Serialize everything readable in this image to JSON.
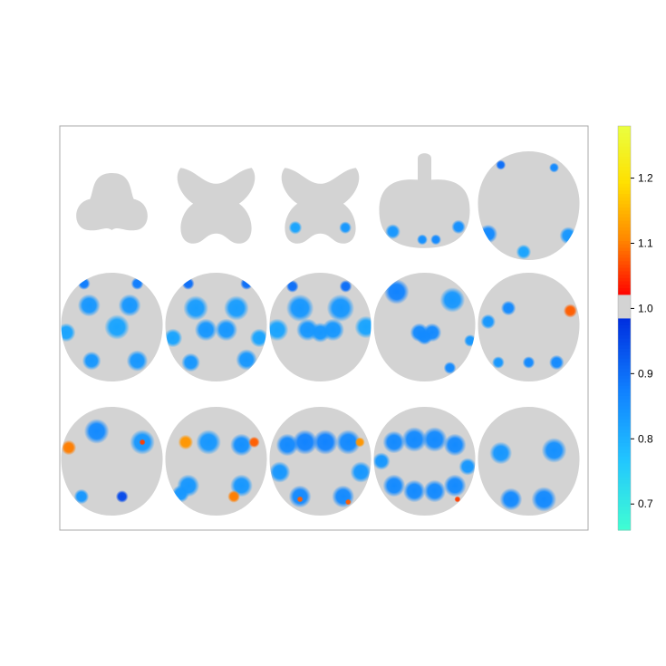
{
  "chart_data": {
    "type": "heatmap",
    "title": "",
    "layout": {
      "rows": 3,
      "cols": 5
    },
    "brain_color": "#d3d3d3",
    "panel_border_color": "#a9a9a9",
    "colorbar": {
      "range": [
        0.66,
        1.28
      ],
      "ticks": [
        "0.7",
        "0.8",
        "0.9",
        "1.0",
        "1.1",
        "1.2"
      ],
      "tick_values": [
        0.7,
        0.8,
        0.9,
        1.0,
        1.1,
        1.2
      ],
      "neutral_band": [
        0.983,
        1.02
      ],
      "low_colors": [
        "#40ffd2",
        "#22c6ff",
        "#1080ff",
        "#0030e0"
      ],
      "high_colors": [
        "#ff0000",
        "#ff8800",
        "#ffe000",
        "#eaff40"
      ]
    },
    "slices": [
      {
        "id": "s1",
        "shape": "cerebellum",
        "blobs": []
      },
      {
        "id": "s2",
        "shape": "cross",
        "blobs": []
      },
      {
        "id": "s3",
        "shape": "cross",
        "blobs": [
          {
            "u": -0.6,
            "v": 0.55,
            "r": 0.14,
            "val": 0.82
          },
          {
            "u": 0.6,
            "v": 0.55,
            "r": 0.13,
            "val": 0.84
          }
        ]
      },
      {
        "id": "s4",
        "shape": "stem",
        "blobs": [
          {
            "u": -0.7,
            "v": 0.55,
            "r": 0.14,
            "val": 0.84
          },
          {
            "u": 0.75,
            "v": 0.45,
            "r": 0.13,
            "val": 0.85
          },
          {
            "u": -0.05,
            "v": 0.72,
            "r": 0.1,
            "val": 0.85
          },
          {
            "u": 0.25,
            "v": 0.72,
            "r": 0.1,
            "val": 0.86
          }
        ]
      },
      {
        "id": "s5",
        "shape": "oval",
        "blobs": [
          {
            "u": -0.55,
            "v": -0.75,
            "r": 0.08,
            "val": 0.9
          },
          {
            "u": 0.5,
            "v": -0.7,
            "r": 0.08,
            "val": 0.86
          },
          {
            "u": -0.8,
            "v": 0.52,
            "r": 0.15,
            "val": 0.86
          },
          {
            "u": 0.78,
            "v": 0.55,
            "r": 0.14,
            "val": 0.84
          },
          {
            "u": -0.1,
            "v": 0.85,
            "r": 0.12,
            "val": 0.82
          }
        ]
      },
      {
        "id": "s6",
        "shape": "oval",
        "blobs": [
          {
            "u": -0.55,
            "v": -0.8,
            "r": 0.1,
            "val": 0.88
          },
          {
            "u": 0.5,
            "v": -0.8,
            "r": 0.1,
            "val": 0.88
          },
          {
            "u": -0.45,
            "v": -0.4,
            "r": 0.18,
            "val": 0.84
          },
          {
            "u": 0.35,
            "v": -0.4,
            "r": 0.18,
            "val": 0.84
          },
          {
            "u": 0.1,
            "v": 0.0,
            "r": 0.2,
            "val": 0.82
          },
          {
            "u": -0.9,
            "v": 0.1,
            "r": 0.15,
            "val": 0.82
          },
          {
            "u": -0.4,
            "v": 0.62,
            "r": 0.15,
            "val": 0.84
          },
          {
            "u": 0.5,
            "v": 0.62,
            "r": 0.17,
            "val": 0.84
          }
        ]
      },
      {
        "id": "s7",
        "shape": "oval",
        "blobs": [
          {
            "u": -0.55,
            "v": -0.8,
            "r": 0.1,
            "val": 0.9
          },
          {
            "u": 0.6,
            "v": -0.8,
            "r": 0.1,
            "val": 0.9
          },
          {
            "u": -0.4,
            "v": -0.35,
            "r": 0.2,
            "val": 0.83
          },
          {
            "u": 0.4,
            "v": -0.35,
            "r": 0.2,
            "val": 0.83
          },
          {
            "u": -0.2,
            "v": 0.05,
            "r": 0.18,
            "val": 0.84
          },
          {
            "u": 0.2,
            "v": 0.05,
            "r": 0.18,
            "val": 0.84
          },
          {
            "u": -0.85,
            "v": 0.2,
            "r": 0.15,
            "val": 0.82
          },
          {
            "u": 0.85,
            "v": 0.2,
            "r": 0.15,
            "val": 0.82
          },
          {
            "u": -0.5,
            "v": 0.65,
            "r": 0.15,
            "val": 0.84
          },
          {
            "u": 0.6,
            "v": 0.6,
            "r": 0.17,
            "val": 0.84
          }
        ]
      },
      {
        "id": "s8",
        "shape": "oval",
        "blobs": [
          {
            "u": -0.55,
            "v": -0.75,
            "r": 0.1,
            "val": 0.9
          },
          {
            "u": 0.5,
            "v": -0.75,
            "r": 0.1,
            "val": 0.9
          },
          {
            "u": -0.4,
            "v": -0.35,
            "r": 0.22,
            "val": 0.84
          },
          {
            "u": 0.4,
            "v": -0.35,
            "r": 0.22,
            "val": 0.84
          },
          {
            "u": -0.25,
            "v": 0.05,
            "r": 0.18,
            "val": 0.84
          },
          {
            "u": 0.25,
            "v": 0.05,
            "r": 0.18,
            "val": 0.84
          },
          {
            "u": 0.0,
            "v": 0.1,
            "r": 0.16,
            "val": 0.84
          },
          {
            "u": -0.85,
            "v": 0.05,
            "r": 0.18,
            "val": 0.82
          },
          {
            "u": 0.9,
            "v": 0.0,
            "r": 0.18,
            "val": 0.82
          },
          {
            "u": 0.7,
            "v": 0.8,
            "r": 0.05,
            "val": 1.06
          }
        ]
      },
      {
        "id": "s9",
        "shape": "oval",
        "blobs": [
          {
            "u": -0.55,
            "v": -0.65,
            "r": 0.2,
            "val": 0.87
          },
          {
            "u": 0.55,
            "v": -0.5,
            "r": 0.2,
            "val": 0.84
          },
          {
            "u": -0.1,
            "v": 0.1,
            "r": 0.15,
            "val": 0.86
          },
          {
            "u": 0.15,
            "v": 0.1,
            "r": 0.15,
            "val": 0.86
          },
          {
            "u": 0.0,
            "v": 0.18,
            "r": 0.13,
            "val": 0.86
          },
          {
            "u": 0.9,
            "v": 0.25,
            "r": 0.1,
            "val": 0.84
          },
          {
            "u": 0.5,
            "v": 0.75,
            "r": 0.1,
            "val": 0.86
          }
        ]
      },
      {
        "id": "s10",
        "shape": "oval",
        "blobs": [
          {
            "u": -0.4,
            "v": -0.35,
            "r": 0.12,
            "val": 0.86
          },
          {
            "u": 0.82,
            "v": -0.3,
            "r": 0.11,
            "val": 1.08
          },
          {
            "u": -0.8,
            "v": -0.1,
            "r": 0.12,
            "val": 0.84
          },
          {
            "u": -0.6,
            "v": 0.65,
            "r": 0.1,
            "val": 0.84
          },
          {
            "u": 0.0,
            "v": 0.65,
            "r": 0.1,
            "val": 0.86
          },
          {
            "u": 0.55,
            "v": 0.65,
            "r": 0.12,
            "val": 0.86
          }
        ]
      },
      {
        "id": "s11",
        "shape": "oval",
        "blobs": [
          {
            "u": -0.85,
            "v": -0.25,
            "r": 0.12,
            "val": 1.1
          },
          {
            "u": -0.3,
            "v": -0.55,
            "r": 0.2,
            "val": 0.86
          },
          {
            "u": 0.6,
            "v": -0.35,
            "r": 0.2,
            "val": 0.84
          },
          {
            "u": 0.6,
            "v": -0.35,
            "r": 0.05,
            "val": 1.06
          },
          {
            "u": -0.9,
            "v": -0.75,
            "r": 0.12,
            "val": 0.84
          },
          {
            "u": -0.6,
            "v": 0.65,
            "r": 0.12,
            "val": 0.84
          },
          {
            "u": 0.2,
            "v": 0.65,
            "r": 0.1,
            "val": 0.95
          }
        ]
      },
      {
        "id": "s12",
        "shape": "oval",
        "blobs": [
          {
            "u": -0.15,
            "v": -0.35,
            "r": 0.2,
            "val": 0.84
          },
          {
            "u": 0.5,
            "v": -0.3,
            "r": 0.18,
            "val": 0.85
          },
          {
            "u": 0.75,
            "v": -0.35,
            "r": 0.09,
            "val": 1.08
          },
          {
            "u": -0.6,
            "v": -0.35,
            "r": 0.12,
            "val": 1.12
          },
          {
            "u": -0.9,
            "v": -0.8,
            "r": 0.08,
            "val": 1.06
          },
          {
            "u": -0.55,
            "v": 0.45,
            "r": 0.18,
            "val": 0.84
          },
          {
            "u": -0.7,
            "v": 0.6,
            "r": 0.14,
            "val": 0.84
          },
          {
            "u": 0.5,
            "v": 0.45,
            "r": 0.18,
            "val": 0.84
          },
          {
            "u": 0.35,
            "v": 0.65,
            "r": 0.1,
            "val": 1.1
          }
        ]
      },
      {
        "id": "s13",
        "shape": "oval",
        "blobs": [
          {
            "u": -0.65,
            "v": -0.3,
            "r": 0.18,
            "val": 0.86
          },
          {
            "u": -0.3,
            "v": -0.35,
            "r": 0.2,
            "val": 0.87
          },
          {
            "u": 0.1,
            "v": -0.35,
            "r": 0.2,
            "val": 0.87
          },
          {
            "u": 0.55,
            "v": -0.35,
            "r": 0.2,
            "val": 0.86
          },
          {
            "u": 0.78,
            "v": -0.35,
            "r": 0.08,
            "val": 1.12
          },
          {
            "u": -0.8,
            "v": 0.2,
            "r": 0.17,
            "val": 0.84
          },
          {
            "u": 0.8,
            "v": 0.2,
            "r": 0.17,
            "val": 0.84
          },
          {
            "u": -0.4,
            "v": 0.65,
            "r": 0.18,
            "val": 0.86
          },
          {
            "u": 0.45,
            "v": 0.65,
            "r": 0.18,
            "val": 0.86
          },
          {
            "u": -0.4,
            "v": 0.7,
            "r": 0.05,
            "val": 1.08
          },
          {
            "u": 0.55,
            "v": 0.75,
            "r": 0.05,
            "val": 1.08
          }
        ]
      },
      {
        "id": "s14",
        "shape": "oval",
        "blobs": [
          {
            "u": -0.6,
            "v": -0.35,
            "r": 0.18,
            "val": 0.86
          },
          {
            "u": -0.2,
            "v": -0.4,
            "r": 0.2,
            "val": 0.86
          },
          {
            "u": 0.2,
            "v": -0.4,
            "r": 0.2,
            "val": 0.86
          },
          {
            "u": 0.6,
            "v": -0.3,
            "r": 0.18,
            "val": 0.86
          },
          {
            "u": -0.6,
            "v": 0.45,
            "r": 0.18,
            "val": 0.86
          },
          {
            "u": -0.2,
            "v": 0.55,
            "r": 0.18,
            "val": 0.86
          },
          {
            "u": 0.2,
            "v": 0.55,
            "r": 0.18,
            "val": 0.86
          },
          {
            "u": 0.6,
            "v": 0.45,
            "r": 0.18,
            "val": 0.86
          },
          {
            "u": 0.85,
            "v": 0.1,
            "r": 0.14,
            "val": 0.84
          },
          {
            "u": -0.85,
            "v": 0.0,
            "r": 0.14,
            "val": 0.84
          },
          {
            "u": 0.65,
            "v": 0.7,
            "r": 0.05,
            "val": 1.06
          }
        ]
      },
      {
        "id": "s15",
        "shape": "oval",
        "blobs": [
          {
            "u": -0.55,
            "v": -0.15,
            "r": 0.18,
            "val": 0.84
          },
          {
            "u": 0.5,
            "v": -0.2,
            "r": 0.2,
            "val": 0.85
          },
          {
            "u": -0.35,
            "v": 0.7,
            "r": 0.18,
            "val": 0.86
          },
          {
            "u": 0.3,
            "v": 0.7,
            "r": 0.2,
            "val": 0.86
          }
        ]
      }
    ]
  }
}
